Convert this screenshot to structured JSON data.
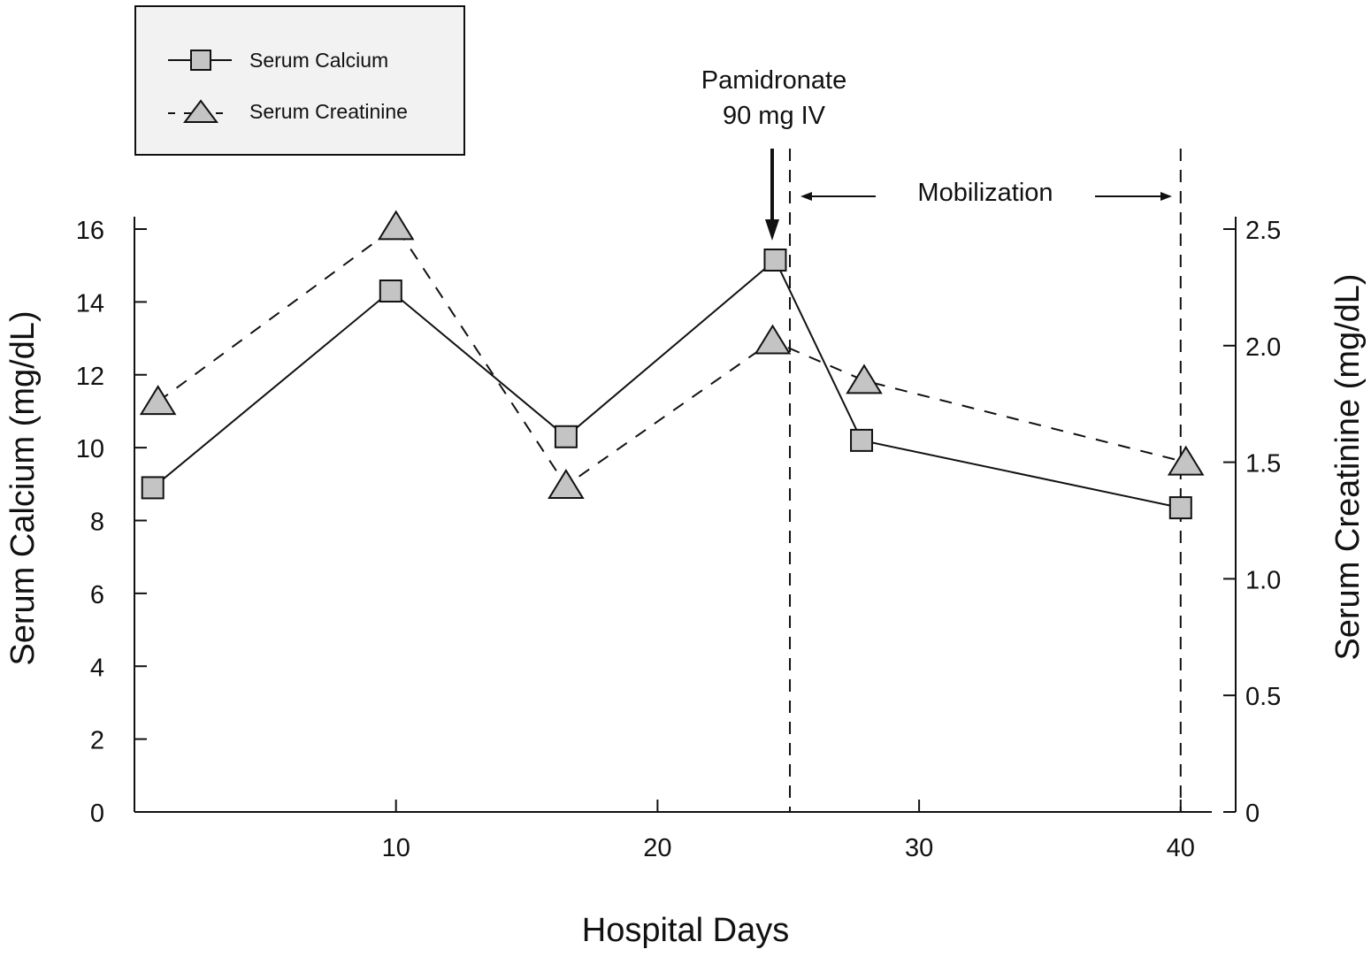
{
  "chart_data": {
    "type": "line",
    "title": "",
    "xlabel": "Hospital Days",
    "ylabel": "Serum Calcium (mg/dL)",
    "y2label": "Serum Creatinine (mg/dL)",
    "xlim": [
      0,
      41.2
    ],
    "ylim": [
      0,
      16
    ],
    "y2lim": [
      0,
      2.5
    ],
    "xticks": [
      10,
      20,
      30,
      40
    ],
    "yticks": [
      0,
      2,
      4,
      6,
      8,
      10,
      12,
      14,
      16
    ],
    "y2ticks": [
      "0",
      "0.5",
      "1.0",
      "1.5",
      "2.0",
      "2.5"
    ],
    "grid": false,
    "legend_position": "top-left",
    "series": [
      {
        "name": "Serum Calcium",
        "axis": "left",
        "marker": "square",
        "line": "solid",
        "x": [
          0.7,
          9.8,
          16.5,
          24.5,
          27.8,
          40
        ],
        "y": [
          8.9,
          14.3,
          10.3,
          15.15,
          10.2,
          8.35
        ]
      },
      {
        "name": "Serum Creatinine",
        "axis": "right",
        "marker": "triangle",
        "line": "dashed",
        "x": [
          0.9,
          10,
          16.5,
          24.4,
          27.9,
          40.2
        ],
        "y": [
          1.76,
          2.51,
          1.4,
          2.02,
          1.85,
          1.5
        ]
      }
    ],
    "annotations": {
      "drug_line1": "Pamidronate",
      "drug_line2": "90 mg IV",
      "drug_day": 24.4,
      "mobilization_label": "Mobilization",
      "mobilization_start": 25.06,
      "mobilization_end": 40
    },
    "colors": {
      "marker_fill": "#c4c4c4",
      "stroke": "#111111",
      "legend_bg": "#f2f2f2"
    }
  }
}
